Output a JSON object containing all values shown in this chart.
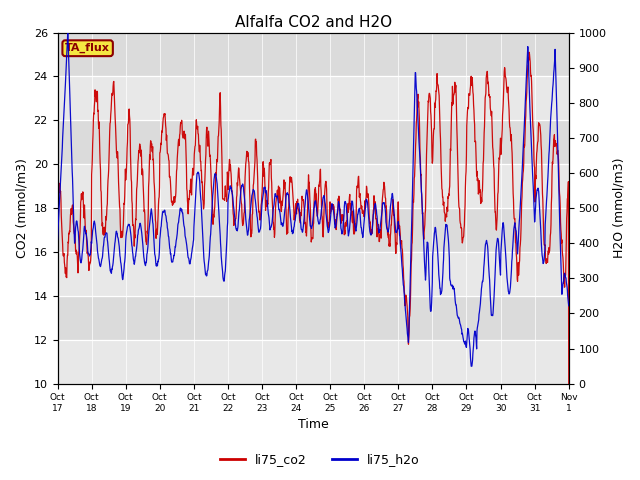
{
  "title": "Alfalfa CO2 and H2O",
  "ylabel_left": "CO2 (mmol/m3)",
  "ylabel_right": "H2O (mmol/m3)",
  "xlabel": "Time",
  "ylim_left": [
    10,
    26
  ],
  "ylim_right": [
    0,
    1000
  ],
  "yticks_left": [
    10,
    12,
    14,
    16,
    18,
    20,
    22,
    24,
    26
  ],
  "yticks_right": [
    0,
    100,
    200,
    300,
    400,
    500,
    600,
    700,
    800,
    900,
    1000
  ],
  "xtick_labels": [
    "Oct 17",
    "Oct 18",
    "Oct 19",
    "Oct 20",
    "Oct 21",
    "Oct 22",
    "Oct 23",
    "Oct 24",
    "Oct 25",
    "Oct 26",
    "Oct 27",
    "Oct 28",
    "Oct 29",
    "Oct 30",
    "Oct 31",
    "Nov 1"
  ],
  "color_co2": "#cc0000",
  "color_h2o": "#0000cc",
  "legend_co2": "li75_co2",
  "legend_h2o": "li75_h2o",
  "annotation_text": "TA_flux",
  "annotation_bg": "#f5e642",
  "annotation_border": "#8b0000",
  "plot_bg": "#e8e8e8",
  "stripe_color": "#d0d0d0",
  "figsize": [
    6.4,
    4.8
  ],
  "dpi": 100
}
